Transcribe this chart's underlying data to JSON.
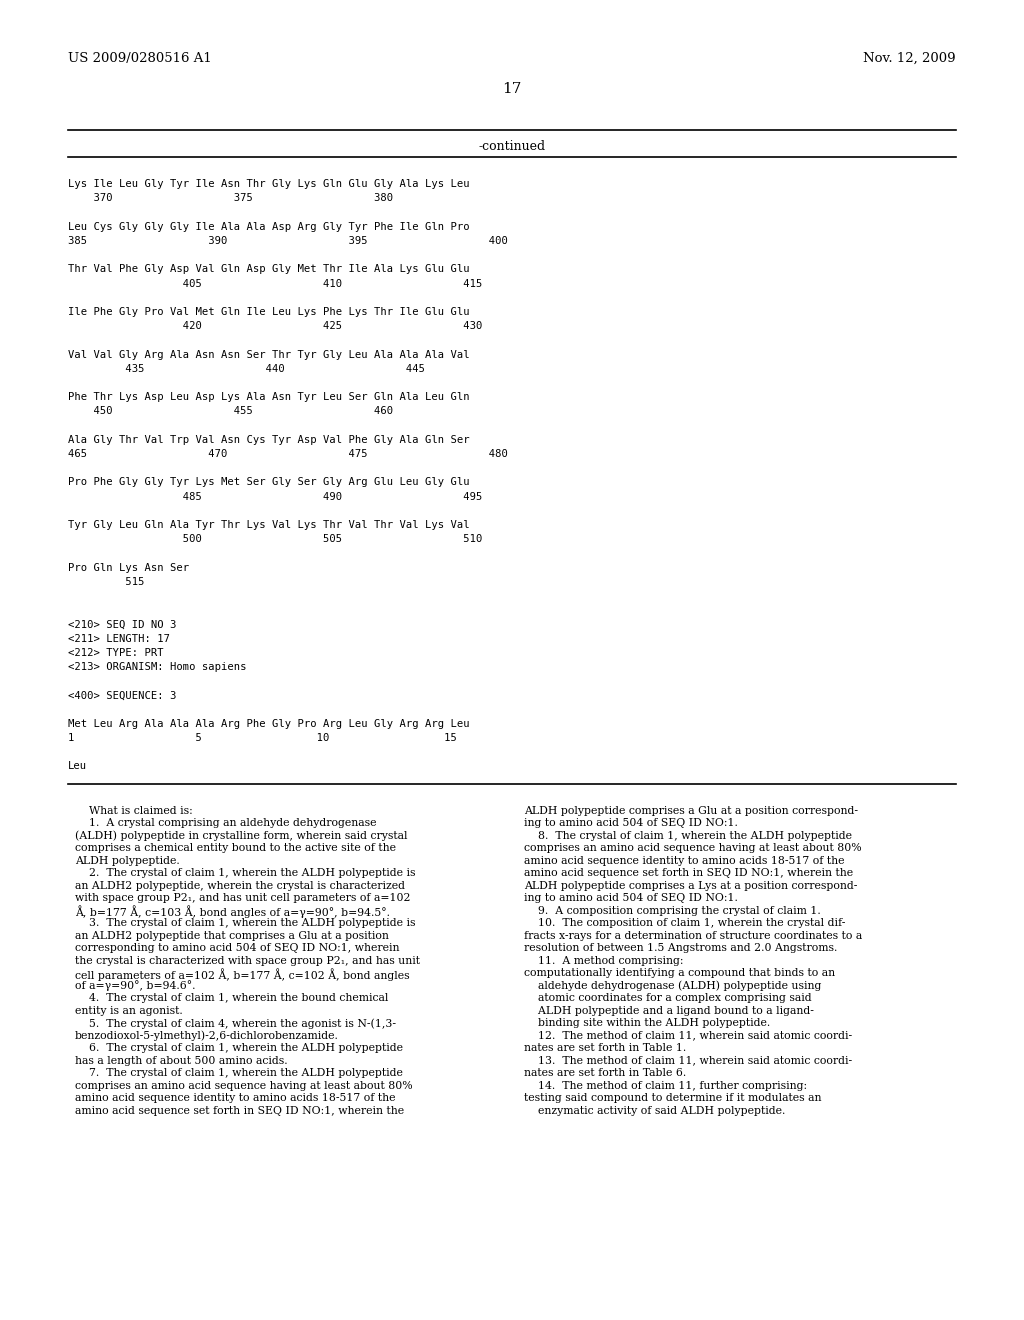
{
  "background_color": "#ffffff",
  "page_number": "17",
  "header_left": "US 2009/0280516 A1",
  "header_right": "Nov. 12, 2009",
  "continued_label": "-continued",
  "monospace_lines": [
    "",
    "Lys Ile Leu Gly Tyr Ile Asn Thr Gly Lys Gln Glu Gly Ala Lys Leu",
    "    370                   375                   380",
    "",
    "Leu Cys Gly Gly Gly Ile Ala Ala Asp Arg Gly Tyr Phe Ile Gln Pro",
    "385                   390                   395                   400",
    "",
    "Thr Val Phe Gly Asp Val Gln Asp Gly Met Thr Ile Ala Lys Glu Glu",
    "                  405                   410                   415",
    "",
    "Ile Phe Gly Pro Val Met Gln Ile Leu Lys Phe Lys Thr Ile Glu Glu",
    "                  420                   425                   430",
    "",
    "Val Val Gly Arg Ala Asn Asn Ser Thr Tyr Gly Leu Ala Ala Ala Val",
    "         435                   440                   445",
    "",
    "Phe Thr Lys Asp Leu Asp Lys Ala Asn Tyr Leu Ser Gln Ala Leu Gln",
    "    450                   455                   460",
    "",
    "Ala Gly Thr Val Trp Val Asn Cys Tyr Asp Val Phe Gly Ala Gln Ser",
    "465                   470                   475                   480",
    "",
    "Pro Phe Gly Gly Tyr Lys Met Ser Gly Ser Gly Arg Glu Leu Gly Glu",
    "                  485                   490                   495",
    "",
    "Tyr Gly Leu Gln Ala Tyr Thr Lys Val Lys Thr Val Thr Val Lys Val",
    "                  500                   505                   510",
    "",
    "Pro Gln Lys Asn Ser",
    "         515",
    "",
    "",
    "<210> SEQ ID NO 3",
    "<211> LENGTH: 17",
    "<212> TYPE: PRT",
    "<213> ORGANISM: Homo sapiens",
    "",
    "<400> SEQUENCE: 3",
    "",
    "Met Leu Arg Ala Ala Ala Arg Phe Gly Pro Arg Leu Gly Arg Arg Leu",
    "1                   5                  10                  15",
    "",
    "Leu"
  ],
  "claims_left": [
    "    What is claimed is:",
    "    1.  A crystal comprising an aldehyde dehydrogenase",
    "(ALDH) polypeptide in crystalline form, wherein said crystal",
    "comprises a chemical entity bound to the active site of the",
    "ALDH polypeptide.",
    "    2.  The crystal of claim 1, wherein the ALDH polypeptide is",
    "an ALDH2 polypeptide, wherein the crystal is characterized",
    "with space group P2₁, and has unit cell parameters of a=102",
    "Å, b=177 Å, c=103 Å, bond angles of a=γ=90°, b=94.5°.",
    "    3.  The crystal of claim 1, wherein the ALDH polypeptide is",
    "an ALDH2 polypeptide that comprises a Glu at a position",
    "corresponding to amino acid 504 of SEQ ID NO:1, wherein",
    "the crystal is characterized with space group P2₁, and has unit",
    "cell parameters of a=102 Å, b=177 Å, c=102 Å, bond angles",
    "of a=γ=90°, b=94.6°.",
    "    4.  The crystal of claim 1, wherein the bound chemical",
    "entity is an agonist.",
    "    5.  The crystal of claim 4, wherein the agonist is N-(1,3-",
    "benzodioxol-5-ylmethyl)-2,6-dichlorobenzamide.",
    "    6.  The crystal of claim 1, wherein the ALDH polypeptide",
    "has a length of about 500 amino acids.",
    "    7.  The crystal of claim 1, wherein the ALDH polypeptide",
    "comprises an amino acid sequence having at least about 80%",
    "amino acid sequence identity to amino acids 18-517 of the",
    "amino acid sequence set forth in SEQ ID NO:1, wherein the"
  ],
  "claims_right": [
    "ALDH polypeptide comprises a Glu at a position correspond-",
    "ing to amino acid 504 of SEQ ID NO:1.",
    "    8.  The crystal of claim 1, wherein the ALDH polypeptide",
    "comprises an amino acid sequence having at least about 80%",
    "amino acid sequence identity to amino acids 18-517 of the",
    "amino acid sequence set forth in SEQ ID NO:1, wherein the",
    "ALDH polypeptide comprises a Lys at a position correspond-",
    "ing to amino acid 504 of SEQ ID NO:1.",
    "    9.  A composition comprising the crystal of claim 1.",
    "    10.  The composition of claim 1, wherein the crystal dif-",
    "fracts x-rays for a determination of structure coordinates to a",
    "resolution of between 1.5 Angstroms and 2.0 Angstroms.",
    "    11.  A method comprising:",
    "computationally identifying a compound that binds to an",
    "    aldehyde dehydrogenase (ALDH) polypeptide using",
    "    atomic coordinates for a complex comprising said",
    "    ALDH polypeptide and a ligand bound to a ligand-",
    "    binding site within the ALDH polypeptide.",
    "    12.  The method of claim 11, wherein said atomic coordi-",
    "nates are set forth in Table 1.",
    "    13.  The method of claim 11, wherein said atomic coordi-",
    "nates are set forth in Table 6.",
    "    14.  The method of claim 11, further comprising:",
    "testing said compound to determine if it modulates an",
    "    enzymatic activity of said ALDH polypeptide."
  ]
}
